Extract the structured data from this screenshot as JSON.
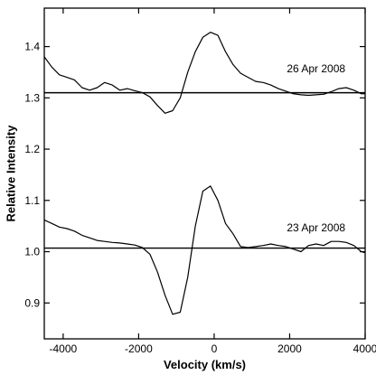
{
  "chart_data": {
    "type": "line",
    "xlabel": "Velocity (km/s)",
    "ylabel": "Relative Intensity",
    "xlim": [
      -4500,
      4000
    ],
    "ylim": [
      0.83,
      1.475
    ],
    "grid": false,
    "legend": "none",
    "colors": {
      "line": "#000000",
      "axes": "#000000",
      "background": "#ffffff"
    },
    "x_ticks": [
      -4000,
      -2000,
      0,
      2000,
      4000
    ],
    "x_tick_labels": [
      "-4000",
      "-2000",
      "0",
      "2000",
      "4000"
    ],
    "y_ticks": [
      0.9,
      1.0,
      1.1,
      1.2,
      1.3,
      1.4
    ],
    "y_tick_labels": [
      "0.9",
      "1.0",
      "1.1",
      "1.2",
      "1.3",
      "1.4"
    ],
    "reference_lines": [
      1.31,
      1.007
    ],
    "annotations": [
      {
        "text": "26 Apr 2008",
        "x": 2700,
        "y": 1.35
      },
      {
        "text": "23 Apr 2008",
        "x": 2700,
        "y": 1.04
      }
    ],
    "series": [
      {
        "x": [
          -4500,
          -4300,
          -4100,
          -3900,
          -3700,
          -3500,
          -3300,
          -3100,
          -2900,
          -2700,
          -2500,
          -2300,
          -2100,
          -1900,
          -1700,
          -1500,
          -1300,
          -1100,
          -900,
          -700,
          -500,
          -300,
          -100,
          100,
          300,
          500,
          700,
          900,
          1100,
          1300,
          1500,
          1700,
          1900,
          2100,
          2300,
          2500,
          2700,
          2900,
          3100,
          3300,
          3500,
          3700,
          3900,
          4000
        ],
        "y": [
          1.38,
          1.36,
          1.345,
          1.34,
          1.335,
          1.32,
          1.315,
          1.32,
          1.33,
          1.325,
          1.315,
          1.318,
          1.314,
          1.31,
          1.302,
          1.285,
          1.27,
          1.275,
          1.3,
          1.35,
          1.39,
          1.418,
          1.428,
          1.422,
          1.39,
          1.365,
          1.348,
          1.34,
          1.332,
          1.33,
          1.325,
          1.318,
          1.313,
          1.308,
          1.306,
          1.305,
          1.306,
          1.307,
          1.312,
          1.318,
          1.32,
          1.315,
          1.308,
          1.308
        ]
      },
      {
        "x": [
          -4500,
          -4300,
          -4100,
          -3900,
          -3700,
          -3500,
          -3300,
          -3100,
          -2900,
          -2700,
          -2500,
          -2300,
          -2100,
          -1900,
          -1700,
          -1500,
          -1300,
          -1100,
          -900,
          -700,
          -500,
          -300,
          -100,
          100,
          300,
          500,
          700,
          900,
          1100,
          1300,
          1500,
          1700,
          1900,
          2100,
          2300,
          2500,
          2700,
          2900,
          3100,
          3300,
          3500,
          3700,
          3900,
          4000
        ],
        "y": [
          1.062,
          1.055,
          1.048,
          1.045,
          1.04,
          1.032,
          1.027,
          1.022,
          1.02,
          1.018,
          1.017,
          1.015,
          1.013,
          1.008,
          0.995,
          0.96,
          0.915,
          0.878,
          0.882,
          0.95,
          1.05,
          1.118,
          1.128,
          1.1,
          1.055,
          1.035,
          1.01,
          1.008,
          1.01,
          1.012,
          1.015,
          1.012,
          1.01,
          1.005,
          1.0,
          1.012,
          1.015,
          1.012,
          1.02,
          1.02,
          1.018,
          1.012,
          1.0,
          0.998
        ]
      }
    ]
  }
}
